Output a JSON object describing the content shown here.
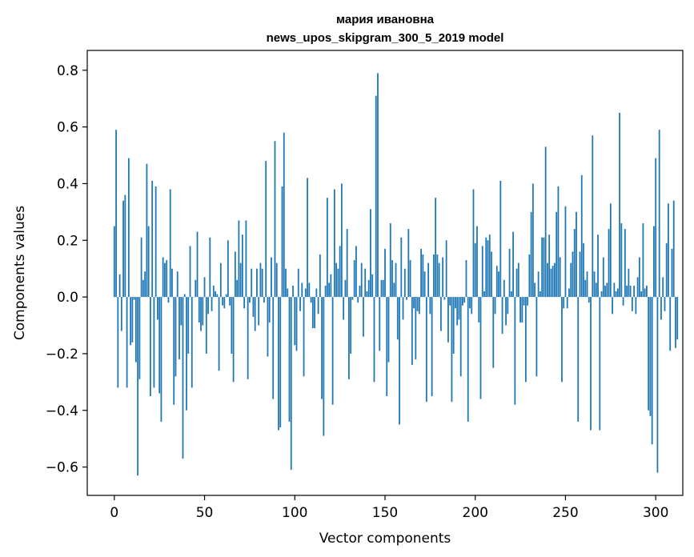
{
  "chart_data": {
    "type": "bar",
    "title_line1": "мария ивановна",
    "title_line2": "news_upos_skipgram_300_5_2019 model",
    "xlabel": "Vector components",
    "ylabel": "Components values",
    "xlim": [
      -15,
      315
    ],
    "ylim": [
      -0.7,
      0.87
    ],
    "xticks": [
      0,
      50,
      100,
      150,
      200,
      250,
      300
    ],
    "xtick_labels": [
      "0",
      "50",
      "100",
      "150",
      "200",
      "250",
      "300"
    ],
    "yticks": [
      -0.6,
      -0.4,
      -0.2,
      0.0,
      0.2,
      0.4,
      0.6,
      0.8
    ],
    "ytick_labels": [
      "−0.6",
      "−0.4",
      "−0.2",
      "0.0",
      "0.2",
      "0.4",
      "0.6",
      "0.8"
    ],
    "bar_color": "#1f77b4",
    "values": [
      0.25,
      0.59,
      -0.32,
      0.08,
      -0.12,
      0.34,
      0.36,
      -0.32,
      0.49,
      -0.17,
      -0.16,
      -0.01,
      -0.23,
      -0.63,
      -0.29,
      0.21,
      0.06,
      0.09,
      0.47,
      0.25,
      -0.35,
      0.41,
      -0.32,
      0.39,
      -0.08,
      -0.34,
      -0.44,
      0.14,
      0.12,
      0.13,
      -0.02,
      0.38,
      0.1,
      -0.38,
      -0.28,
      0.09,
      -0.22,
      -0.1,
      -0.57,
      0.01,
      -0.4,
      -0.2,
      0.18,
      -0.32,
      0.0,
      0.06,
      0.23,
      -0.09,
      -0.12,
      -0.1,
      0.07,
      -0.2,
      -0.06,
      0.21,
      -0.05,
      0.04,
      0.02,
      0.01,
      -0.26,
      0.12,
      -0.03,
      -0.04,
      0.01,
      0.2,
      -0.03,
      -0.2,
      -0.3,
      0.16,
      0.06,
      0.27,
      0.12,
      0.22,
      -0.04,
      0.27,
      -0.29,
      -0.02,
      0.1,
      -0.07,
      -0.12,
      0.1,
      -0.1,
      0.12,
      0.1,
      -0.02,
      0.48,
      -0.21,
      -0.09,
      0.14,
      -0.36,
      0.55,
      0.12,
      -0.47,
      -0.46,
      0.39,
      0.58,
      0.1,
      0.03,
      -0.44,
      -0.61,
      0.04,
      -0.17,
      -0.19,
      0.1,
      -0.05,
      0.05,
      -0.28,
      0.03,
      0.42,
      0.05,
      -0.02,
      -0.11,
      -0.11,
      0.03,
      -0.06,
      0.15,
      -0.36,
      -0.49,
      0.04,
      0.35,
      0.05,
      0.08,
      -0.38,
      0.38,
      0.12,
      0.1,
      0.18,
      0.4,
      -0.08,
      0.06,
      0.24,
      -0.29,
      -0.2,
      -0.01,
      0.13,
      0.18,
      -0.02,
      0.04,
      0.12,
      -0.14,
      0.1,
      0.02,
      0.06,
      0.31,
      0.08,
      -0.3,
      0.71,
      0.79,
      -0.19,
      0.06,
      0.06,
      0.17,
      -0.35,
      -0.23,
      0.26,
      0.13,
      0.05,
      0.12,
      -0.15,
      -0.45,
      0.21,
      -0.08,
      0.1,
      -0.01,
      0.24,
      0.13,
      -0.24,
      -0.04,
      -0.22,
      -0.05,
      -0.06,
      0.17,
      0.15,
      0.09,
      -0.37,
      0.12,
      -0.06,
      -0.35,
      0.15,
      0.35,
      0.15,
      0.12,
      -0.12,
      0.14,
      -0.01,
      0.2,
      -0.16,
      -0.03,
      -0.37,
      -0.2,
      -0.04,
      -0.1,
      -0.08,
      -0.28,
      -0.03,
      -0.02,
      0.13,
      -0.44,
      -0.04,
      -0.06,
      0.38,
      0.19,
      0.25,
      -0.09,
      -0.36,
      0.18,
      0.02,
      0.21,
      0.2,
      0.22,
      0.16,
      -0.25,
      -0.06,
      0.11,
      0.09,
      0.41,
      -0.13,
      0.06,
      -0.1,
      -0.06,
      0.17,
      0.02,
      0.23,
      -0.38,
      0.1,
      0.12,
      -0.09,
      -0.09,
      -0.03,
      -0.3,
      -0.03,
      0.15,
      0.3,
      0.4,
      0.05,
      -0.28,
      0.09,
      0.02,
      0.21,
      0.21,
      0.53,
      0.12,
      0.22,
      0.1,
      0.11,
      0.12,
      0.3,
      0.39,
      0.14,
      -0.3,
      -0.04,
      0.32,
      -0.04,
      0.03,
      0.12,
      0.16,
      0.24,
      0.3,
      -0.44,
      0.16,
      0.43,
      0.19,
      0.06,
      0.09,
      -0.02,
      -0.47,
      0.57,
      0.09,
      0.05,
      0.22,
      -0.47,
      0.02,
      0.14,
      0.04,
      0.05,
      0.24,
      0.33,
      -0.06,
      0.05,
      0.02,
      0.03,
      0.65,
      0.26,
      -0.03,
      0.24,
      0.04,
      0.1,
      0.04,
      -0.05,
      0.04,
      -0.06,
      0.07,
      0.14,
      0.02,
      0.26,
      0.03,
      0.04,
      -0.4,
      -0.42,
      -0.52,
      0.25,
      0.49,
      -0.62,
      0.59,
      -0.08,
      0.07,
      -0.05,
      0.19,
      0.33,
      -0.19,
      0.17,
      0.34,
      -0.18,
      -0.15
    ]
  }
}
